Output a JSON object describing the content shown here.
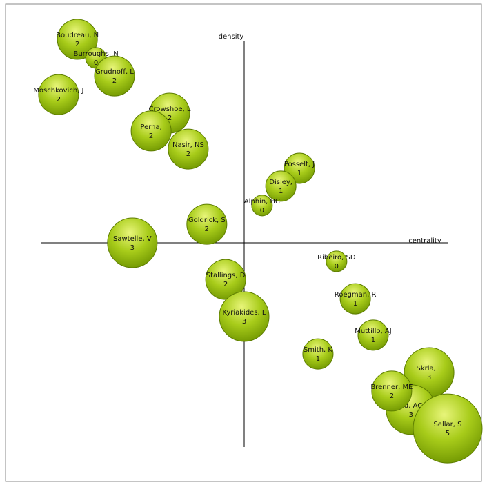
{
  "chart_data": {
    "type": "bubble",
    "xlabel": "centrality",
    "ylabel": "density",
    "xlim": [
      -100,
      100
    ],
    "ylim": [
      -100,
      100
    ],
    "names": [
      "Boudreau, N",
      "Burroughs, N",
      "Grudnoff, L",
      "Moschkovich, J",
      "Crowshoe, L",
      "Perna,",
      "Nasir, NS",
      "Posselt, J",
      "Disley,",
      "Alphin, HC",
      "Goldrick, S",
      "Sawtelle, V",
      "Ribeiro, SD",
      "Stallings, D",
      "Roegman, R",
      "Kyriakides, L",
      "Muttillo, AJ",
      "Smith, K",
      "Skrla, L",
      "nd, AC",
      "Sellar, S",
      "Brenner, ME"
    ],
    "x": [
      -70.1,
      -62.3,
      -54.5,
      -78.0,
      -31.3,
      -39.1,
      -23.5,
      23.2,
      15.4,
      7.5,
      -15.7,
      -47.0,
      38.8,
      -7.8,
      46.7,
      0,
      54.2,
      31.0,
      77.7,
      70.1,
      85.5,
      62.0
    ],
    "y": [
      85.5,
      77.7,
      70.1,
      62.3,
      54.5,
      47.0,
      39.4,
      31.3,
      23.8,
      15.7,
      7.8,
      0,
      -7.8,
      -15.4,
      -23.5,
      -31.0,
      -38.8,
      -46.7,
      -54.5,
      -70.1,
      -78.0,
      -62.3
    ],
    "values": [
      2,
      0,
      2,
      2,
      2,
      2,
      2,
      1,
      1,
      0,
      2,
      3,
      0,
      2,
      1,
      3,
      1,
      1,
      3,
      3,
      5,
      2
    ],
    "color": "#8fb80f"
  }
}
